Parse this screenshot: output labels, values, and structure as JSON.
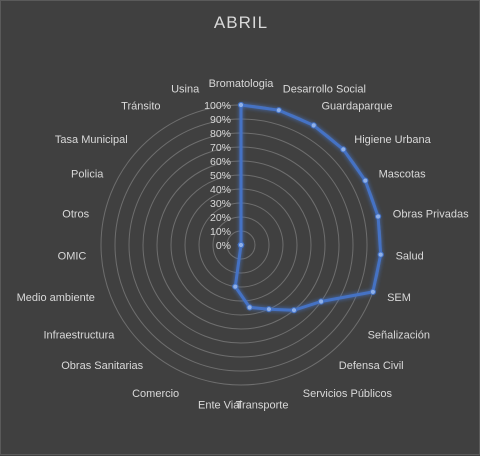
{
  "chart_data": {
    "type": "radar",
    "title": "ABRIL",
    "categories": [
      "Bromatologia",
      "Desarrollo Social",
      "Guardaparque",
      "Higiene Urbana",
      "Mascotas",
      "Obras Privadas",
      "Salud",
      "SEM",
      "Señalización",
      "Defensa Civil",
      "Servicios Públicos",
      "Transporte",
      "Ente Vial",
      "Comercio",
      "Obras Sanitarias",
      "Infraestructura",
      "Medio ambiente",
      "OMIC",
      "Otros",
      "Policia",
      "Tasa Municipal",
      "Tránsito",
      "Usina"
    ],
    "series": [
      {
        "values": [
          100,
          100,
          100,
          100,
          100,
          100,
          100,
          100,
          70,
          60,
          50,
          45,
          30,
          0,
          0,
          0,
          0,
          0,
          0,
          0,
          0,
          0,
          0
        ]
      }
    ],
    "r_ticks": [
      "0%",
      "10%",
      "20%",
      "30%",
      "40%",
      "50%",
      "60%",
      "70%",
      "80%",
      "90%",
      "100%"
    ],
    "rlim": [
      0,
      100
    ],
    "grid": true,
    "colors": {
      "series": "#4472c4",
      "background": "#404040",
      "grid": "#6e6e6e",
      "text": "#d9d9d9"
    }
  }
}
